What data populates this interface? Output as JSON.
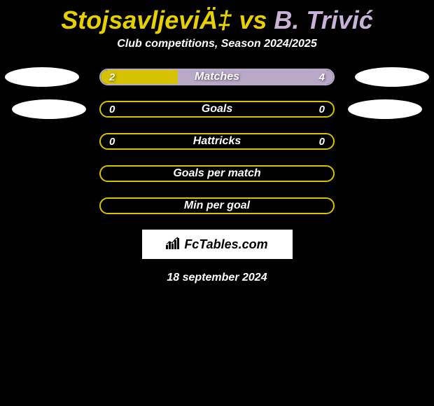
{
  "title": {
    "player1": "StojsavljeviÄ‡",
    "vs": " vs ",
    "player2": "B. Trivić",
    "color1": "#e6d000",
    "color2": "#c8b2d8"
  },
  "subtitle": "Club competitions, Season 2024/2025",
  "stats": [
    {
      "label": "Matches",
      "left_val": "2",
      "right_val": "4",
      "left_pct": 33,
      "right_pct": 67,
      "border_color": "#b8a9c9",
      "left_fill": "#d6c200",
      "right_fill": "#b8a9c9",
      "show_ellipse": true,
      "ellipse_class": ""
    },
    {
      "label": "Goals",
      "left_val": "0",
      "right_val": "0",
      "left_pct": 0,
      "right_pct": 0,
      "border_color": "#d6c200",
      "left_fill": "#d6c200",
      "right_fill": "#b8a9c9",
      "show_ellipse": true,
      "ellipse_class": "2"
    },
    {
      "label": "Hattricks",
      "left_val": "0",
      "right_val": "0",
      "left_pct": 0,
      "right_pct": 0,
      "border_color": "#d6c200",
      "left_fill": "#d6c200",
      "right_fill": "#b8a9c9",
      "show_ellipse": false
    },
    {
      "label": "Goals per match",
      "left_val": "",
      "right_val": "",
      "left_pct": 0,
      "right_pct": 0,
      "border_color": "#d6c200",
      "left_fill": "#d6c200",
      "right_fill": "#b8a9c9",
      "show_ellipse": false
    },
    {
      "label": "Min per goal",
      "left_val": "",
      "right_val": "",
      "left_pct": 0,
      "right_pct": 0,
      "border_color": "#d6c200",
      "left_fill": "#d6c200",
      "right_fill": "#b8a9c9",
      "show_ellipse": false
    }
  ],
  "logo": {
    "text": "FcTables.com",
    "icon_color": "#000000",
    "bg": "#ffffff"
  },
  "date": "18 september 2024",
  "colors": {
    "bg": "#000000",
    "text": "#ffffff"
  }
}
